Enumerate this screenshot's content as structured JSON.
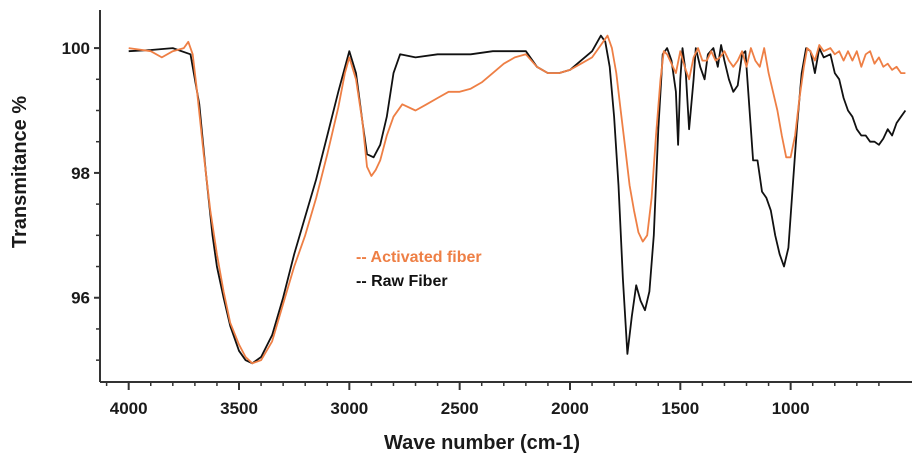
{
  "chart_data": {
    "type": "line",
    "xlabel": "Wave number (cm-1)",
    "ylabel": "Transmitance %",
    "x_reversed": true,
    "xlim": [
      4130,
      450
    ],
    "ylim": [
      94.65,
      100.45
    ],
    "x_ticks": [
      4000,
      3500,
      3000,
      2500,
      2000,
      1500,
      1000
    ],
    "x_tick_labels": [
      "4000",
      "3500",
      "3000",
      "2500",
      "2000",
      "1500",
      "1000"
    ],
    "y_ticks": [
      96,
      98,
      100
    ],
    "y_tick_labels": [
      "96",
      "98",
      "100"
    ],
    "grid": false,
    "legend": {
      "placement": "center",
      "entries": [
        {
          "label": "-- Activated fiber",
          "color": "#ee7f45"
        },
        {
          "label": "-- Raw Fiber",
          "color": "#111111"
        }
      ]
    },
    "series": [
      {
        "color": "#111111",
        "points": [
          [
            4000,
            99.95
          ],
          [
            3900,
            99.97
          ],
          [
            3800,
            100.0
          ],
          [
            3720,
            99.9
          ],
          [
            3680,
            99.1
          ],
          [
            3650,
            98.0
          ],
          [
            3620,
            97.0
          ],
          [
            3600,
            96.5
          ],
          [
            3570,
            96.0
          ],
          [
            3540,
            95.55
          ],
          [
            3500,
            95.15
          ],
          [
            3470,
            95.0
          ],
          [
            3440,
            94.95
          ],
          [
            3400,
            95.05
          ],
          [
            3350,
            95.4
          ],
          [
            3300,
            96.0
          ],
          [
            3250,
            96.7
          ],
          [
            3200,
            97.3
          ],
          [
            3150,
            97.9
          ],
          [
            3100,
            98.6
          ],
          [
            3050,
            99.3
          ],
          [
            3000,
            99.95
          ],
          [
            2970,
            99.6
          ],
          [
            2940,
            98.8
          ],
          [
            2920,
            98.3
          ],
          [
            2890,
            98.25
          ],
          [
            2860,
            98.45
          ],
          [
            2830,
            98.9
          ],
          [
            2800,
            99.6
          ],
          [
            2770,
            99.9
          ],
          [
            2700,
            99.85
          ],
          [
            2600,
            99.9
          ],
          [
            2450,
            99.9
          ],
          [
            2350,
            99.95
          ],
          [
            2250,
            99.95
          ],
          [
            2200,
            99.95
          ],
          [
            2150,
            99.7
          ],
          [
            2100,
            99.6
          ],
          [
            2050,
            99.6
          ],
          [
            2000,
            99.65
          ],
          [
            1950,
            99.8
          ],
          [
            1900,
            99.95
          ],
          [
            1860,
            100.2
          ],
          [
            1840,
            100.1
          ],
          [
            1820,
            99.7
          ],
          [
            1800,
            98.9
          ],
          [
            1780,
            97.8
          ],
          [
            1760,
            96.3
          ],
          [
            1740,
            95.1
          ],
          [
            1720,
            95.7
          ],
          [
            1700,
            96.2
          ],
          [
            1680,
            95.95
          ],
          [
            1660,
            95.8
          ],
          [
            1640,
            96.1
          ],
          [
            1620,
            97.0
          ],
          [
            1600,
            98.7
          ],
          [
            1580,
            99.9
          ],
          [
            1560,
            100.0
          ],
          [
            1540,
            99.8
          ],
          [
            1520,
            99.3
          ],
          [
            1510,
            98.45
          ],
          [
            1500,
            99.5
          ],
          [
            1490,
            100.0
          ],
          [
            1475,
            99.6
          ],
          [
            1460,
            98.7
          ],
          [
            1440,
            99.5
          ],
          [
            1430,
            100.0
          ],
          [
            1410,
            99.7
          ],
          [
            1390,
            99.5
          ],
          [
            1375,
            99.9
          ],
          [
            1350,
            100.0
          ],
          [
            1330,
            99.7
          ],
          [
            1315,
            100.05
          ],
          [
            1300,
            99.8
          ],
          [
            1280,
            99.5
          ],
          [
            1260,
            99.3
          ],
          [
            1240,
            99.4
          ],
          [
            1220,
            99.9
          ],
          [
            1205,
            99.95
          ],
          [
            1190,
            99.2
          ],
          [
            1170,
            98.2
          ],
          [
            1150,
            98.2
          ],
          [
            1130,
            97.7
          ],
          [
            1110,
            97.6
          ],
          [
            1090,
            97.4
          ],
          [
            1070,
            97.0
          ],
          [
            1050,
            96.7
          ],
          [
            1030,
            96.5
          ],
          [
            1010,
            96.8
          ],
          [
            990,
            97.8
          ],
          [
            970,
            98.8
          ],
          [
            950,
            99.6
          ],
          [
            930,
            100.0
          ],
          [
            910,
            99.95
          ],
          [
            890,
            99.6
          ],
          [
            870,
            100.0
          ],
          [
            850,
            99.85
          ],
          [
            820,
            99.9
          ],
          [
            800,
            99.6
          ],
          [
            780,
            99.5
          ],
          [
            760,
            99.2
          ],
          [
            740,
            99.0
          ],
          [
            720,
            98.9
          ],
          [
            700,
            98.7
          ],
          [
            680,
            98.6
          ],
          [
            660,
            98.6
          ],
          [
            640,
            98.5
          ],
          [
            620,
            98.5
          ],
          [
            600,
            98.45
          ],
          [
            580,
            98.55
          ],
          [
            560,
            98.7
          ],
          [
            540,
            98.6
          ],
          [
            520,
            98.8
          ],
          [
            500,
            98.9
          ],
          [
            480,
            99.0
          ]
        ]
      },
      {
        "color": "#ee7f45",
        "points": [
          [
            4000,
            100.0
          ],
          [
            3900,
            99.95
          ],
          [
            3850,
            99.85
          ],
          [
            3800,
            99.95
          ],
          [
            3750,
            100.0
          ],
          [
            3730,
            100.1
          ],
          [
            3710,
            99.9
          ],
          [
            3690,
            99.3
          ],
          [
            3660,
            98.3
          ],
          [
            3630,
            97.4
          ],
          [
            3600,
            96.7
          ],
          [
            3570,
            96.1
          ],
          [
            3540,
            95.6
          ],
          [
            3500,
            95.25
          ],
          [
            3470,
            95.05
          ],
          [
            3440,
            94.95
          ],
          [
            3400,
            95.0
          ],
          [
            3350,
            95.3
          ],
          [
            3300,
            95.9
          ],
          [
            3250,
            96.5
          ],
          [
            3200,
            97.0
          ],
          [
            3150,
            97.6
          ],
          [
            3100,
            98.3
          ],
          [
            3050,
            99.05
          ],
          [
            3020,
            99.6
          ],
          [
            3000,
            99.85
          ],
          [
            2970,
            99.5
          ],
          [
            2940,
            98.8
          ],
          [
            2920,
            98.1
          ],
          [
            2900,
            97.95
          ],
          [
            2880,
            98.05
          ],
          [
            2860,
            98.2
          ],
          [
            2830,
            98.6
          ],
          [
            2800,
            98.9
          ],
          [
            2760,
            99.1
          ],
          [
            2700,
            99.0
          ],
          [
            2650,
            99.1
          ],
          [
            2600,
            99.2
          ],
          [
            2550,
            99.3
          ],
          [
            2500,
            99.3
          ],
          [
            2450,
            99.35
          ],
          [
            2400,
            99.45
          ],
          [
            2350,
            99.6
          ],
          [
            2300,
            99.75
          ],
          [
            2250,
            99.85
          ],
          [
            2200,
            99.9
          ],
          [
            2150,
            99.7
          ],
          [
            2100,
            99.6
          ],
          [
            2050,
            99.6
          ],
          [
            2000,
            99.65
          ],
          [
            1950,
            99.75
          ],
          [
            1900,
            99.85
          ],
          [
            1860,
            100.05
          ],
          [
            1830,
            100.2
          ],
          [
            1810,
            100.0
          ],
          [
            1790,
            99.6
          ],
          [
            1770,
            99.0
          ],
          [
            1750,
            98.4
          ],
          [
            1730,
            97.8
          ],
          [
            1710,
            97.4
          ],
          [
            1690,
            97.05
          ],
          [
            1670,
            96.9
          ],
          [
            1650,
            97.0
          ],
          [
            1630,
            97.6
          ],
          [
            1610,
            98.6
          ],
          [
            1590,
            99.5
          ],
          [
            1575,
            99.95
          ],
          [
            1560,
            99.9
          ],
          [
            1540,
            99.75
          ],
          [
            1520,
            99.6
          ],
          [
            1500,
            99.95
          ],
          [
            1480,
            99.7
          ],
          [
            1460,
            99.5
          ],
          [
            1440,
            99.85
          ],
          [
            1420,
            100.0
          ],
          [
            1400,
            99.8
          ],
          [
            1380,
            99.8
          ],
          [
            1360,
            99.95
          ],
          [
            1340,
            99.8
          ],
          [
            1320,
            99.85
          ],
          [
            1300,
            99.95
          ],
          [
            1280,
            99.8
          ],
          [
            1260,
            99.7
          ],
          [
            1240,
            99.8
          ],
          [
            1220,
            99.95
          ],
          [
            1200,
            99.7
          ],
          [
            1180,
            100.0
          ],
          [
            1160,
            99.8
          ],
          [
            1140,
            99.7
          ],
          [
            1120,
            100.0
          ],
          [
            1100,
            99.6
          ],
          [
            1080,
            99.3
          ],
          [
            1060,
            99.0
          ],
          [
            1040,
            98.6
          ],
          [
            1020,
            98.25
          ],
          [
            1000,
            98.25
          ],
          [
            980,
            98.6
          ],
          [
            960,
            99.2
          ],
          [
            940,
            99.7
          ],
          [
            925,
            100.0
          ],
          [
            910,
            99.95
          ],
          [
            890,
            99.8
          ],
          [
            870,
            100.05
          ],
          [
            850,
            99.95
          ],
          [
            820,
            100.0
          ],
          [
            800,
            99.9
          ],
          [
            780,
            99.95
          ],
          [
            760,
            99.8
          ],
          [
            740,
            99.95
          ],
          [
            720,
            99.8
          ],
          [
            700,
            99.95
          ],
          [
            680,
            99.7
          ],
          [
            660,
            99.9
          ],
          [
            640,
            99.95
          ],
          [
            620,
            99.75
          ],
          [
            600,
            99.85
          ],
          [
            580,
            99.7
          ],
          [
            560,
            99.75
          ],
          [
            540,
            99.65
          ],
          [
            520,
            99.7
          ],
          [
            500,
            99.6
          ],
          [
            480,
            99.6
          ]
        ]
      }
    ]
  }
}
